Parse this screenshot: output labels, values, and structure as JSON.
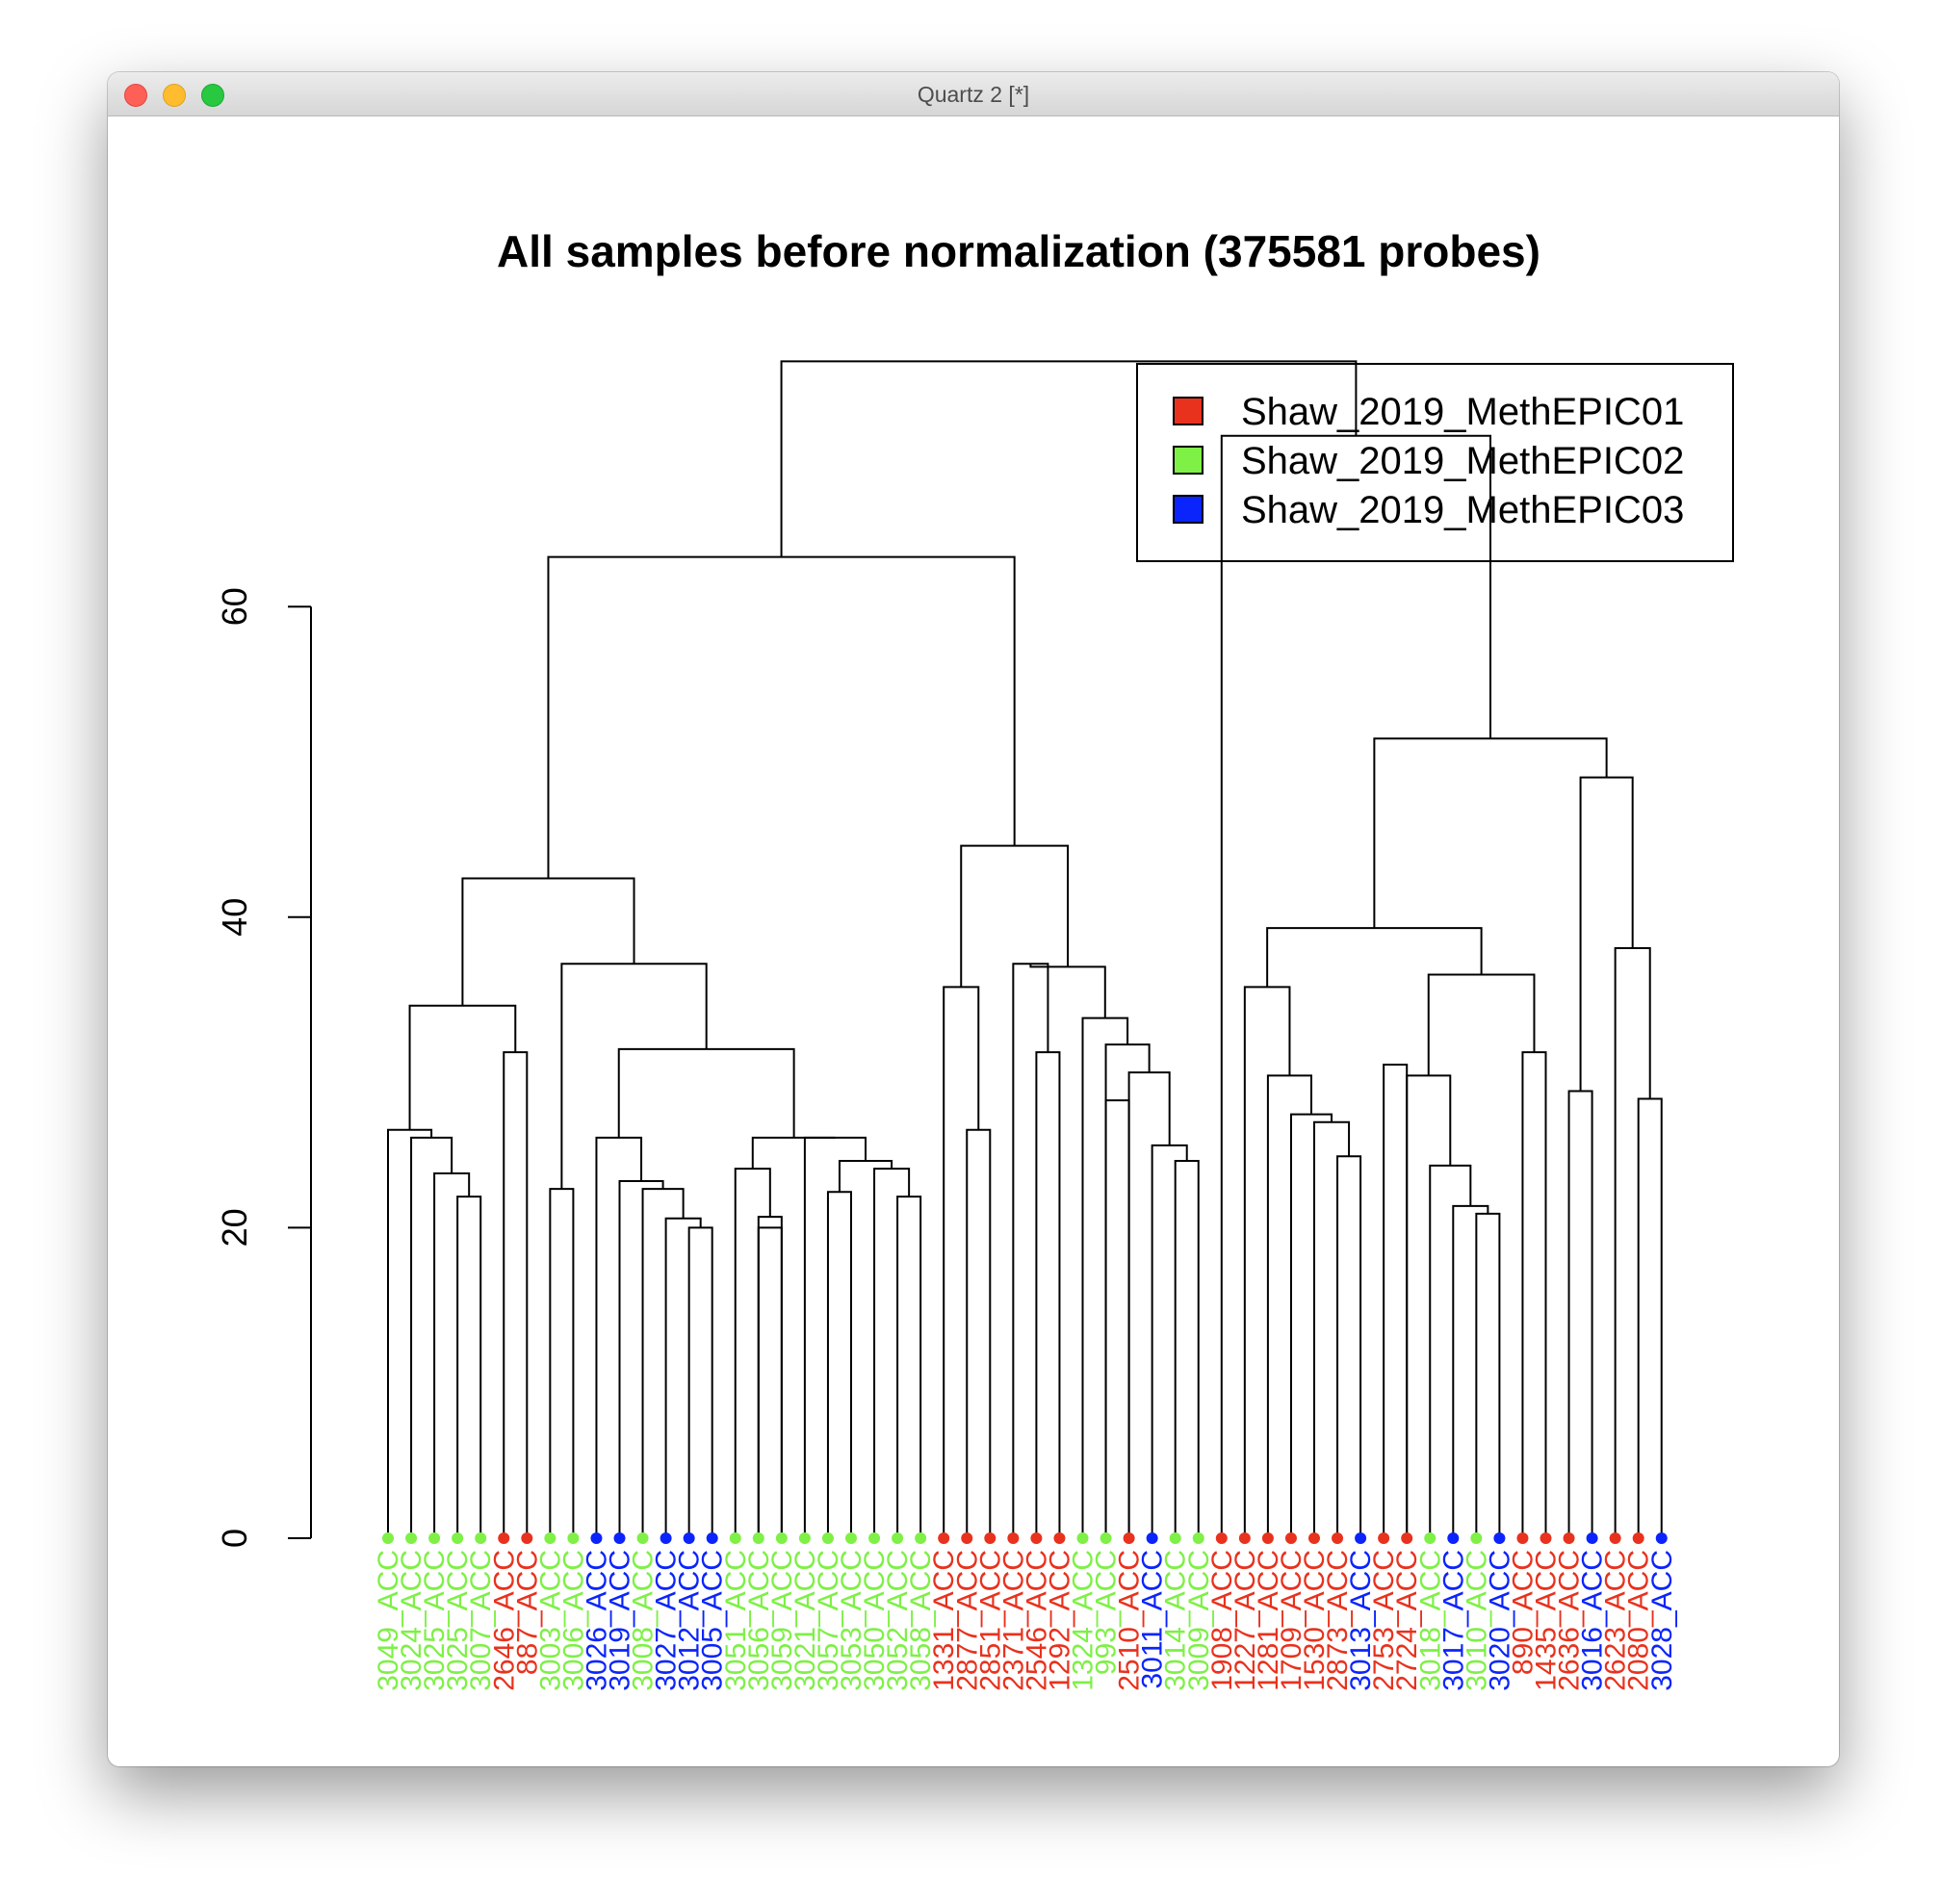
{
  "window": {
    "title": "Quartz 2 [*]"
  },
  "chart_data": {
    "type": "dendrogram",
    "title": "All samples before normalization (375581 probes)",
    "y_axis": {
      "ticks": [
        0,
        20,
        40,
        60
      ],
      "ylim": [
        0,
        75
      ]
    },
    "colors": {
      "Shaw_2019_MethEPIC01": "#e8321e",
      "Shaw_2019_MethEPIC02": "#7ef046",
      "Shaw_2019_MethEPIC03": "#0b24fb"
    },
    "legend": {
      "placement": "top-right",
      "entries": [
        {
          "label": "Shaw_2019_MethEPIC01",
          "color": "#e8321e"
        },
        {
          "label": "Shaw_2019_MethEPIC02",
          "color": "#7ef046"
        },
        {
          "label": "Shaw_2019_MethEPIC03",
          "color": "#0b24fb"
        }
      ]
    },
    "leaves": [
      {
        "label": "3049_ACC",
        "batch": "Shaw_2019_MethEPIC02"
      },
      {
        "label": "3024_ACC",
        "batch": "Shaw_2019_MethEPIC02"
      },
      {
        "label": "3025_ACC",
        "batch": "Shaw_2019_MethEPIC02"
      },
      {
        "label": "3025_ACC",
        "batch": "Shaw_2019_MethEPIC02"
      },
      {
        "label": "3007_ACC",
        "batch": "Shaw_2019_MethEPIC02"
      },
      {
        "label": "2646_ACC",
        "batch": "Shaw_2019_MethEPIC01"
      },
      {
        "label": "887_ACC",
        "batch": "Shaw_2019_MethEPIC01"
      },
      {
        "label": "3003_ACC",
        "batch": "Shaw_2019_MethEPIC02"
      },
      {
        "label": "3006_ACC",
        "batch": "Shaw_2019_MethEPIC02"
      },
      {
        "label": "3026_ACC",
        "batch": "Shaw_2019_MethEPIC03"
      },
      {
        "label": "3019_ACC",
        "batch": "Shaw_2019_MethEPIC03"
      },
      {
        "label": "3008_ACC",
        "batch": "Shaw_2019_MethEPIC02"
      },
      {
        "label": "3027_ACC",
        "batch": "Shaw_2019_MethEPIC03"
      },
      {
        "label": "3012_ACC",
        "batch": "Shaw_2019_MethEPIC03"
      },
      {
        "label": "3005_ACC",
        "batch": "Shaw_2019_MethEPIC03"
      },
      {
        "label": "3051_ACC",
        "batch": "Shaw_2019_MethEPIC02"
      },
      {
        "label": "3056_ACC",
        "batch": "Shaw_2019_MethEPIC02"
      },
      {
        "label": "3059_ACC",
        "batch": "Shaw_2019_MethEPIC02"
      },
      {
        "label": "3021_ACC",
        "batch": "Shaw_2019_MethEPIC02"
      },
      {
        "label": "3057_ACC",
        "batch": "Shaw_2019_MethEPIC02"
      },
      {
        "label": "3053_ACC",
        "batch": "Shaw_2019_MethEPIC02"
      },
      {
        "label": "3050_ACC",
        "batch": "Shaw_2019_MethEPIC02"
      },
      {
        "label": "3052_ACC",
        "batch": "Shaw_2019_MethEPIC02"
      },
      {
        "label": "3058_ACC",
        "batch": "Shaw_2019_MethEPIC02"
      },
      {
        "label": "1331_ACC",
        "batch": "Shaw_2019_MethEPIC01"
      },
      {
        "label": "2877_ACC",
        "batch": "Shaw_2019_MethEPIC01"
      },
      {
        "label": "2851_ACC",
        "batch": "Shaw_2019_MethEPIC01"
      },
      {
        "label": "2371_ACC",
        "batch": "Shaw_2019_MethEPIC01"
      },
      {
        "label": "2546_ACC",
        "batch": "Shaw_2019_MethEPIC01"
      },
      {
        "label": "1292_ACC",
        "batch": "Shaw_2019_MethEPIC01"
      },
      {
        "label": "1324_ACC",
        "batch": "Shaw_2019_MethEPIC02"
      },
      {
        "label": "993_ACC",
        "batch": "Shaw_2019_MethEPIC02"
      },
      {
        "label": "2510_ACC",
        "batch": "Shaw_2019_MethEPIC01"
      },
      {
        "label": "3011_ACC",
        "batch": "Shaw_2019_MethEPIC03"
      },
      {
        "label": "3014_ACC",
        "batch": "Shaw_2019_MethEPIC02"
      },
      {
        "label": "3009_ACC",
        "batch": "Shaw_2019_MethEPIC02"
      },
      {
        "label": "1908_ACC",
        "batch": "Shaw_2019_MethEPIC01"
      },
      {
        "label": "1227_ACC",
        "batch": "Shaw_2019_MethEPIC01"
      },
      {
        "label": "1281_ACC",
        "batch": "Shaw_2019_MethEPIC01"
      },
      {
        "label": "1709_ACC",
        "batch": "Shaw_2019_MethEPIC01"
      },
      {
        "label": "1530_ACC",
        "batch": "Shaw_2019_MethEPIC01"
      },
      {
        "label": "2873_ACC",
        "batch": "Shaw_2019_MethEPIC01"
      },
      {
        "label": "3013_ACC",
        "batch": "Shaw_2019_MethEPIC03"
      },
      {
        "label": "2753_ACC",
        "batch": "Shaw_2019_MethEPIC01"
      },
      {
        "label": "2724_ACC",
        "batch": "Shaw_2019_MethEPIC01"
      },
      {
        "label": "3018_ACC",
        "batch": "Shaw_2019_MethEPIC02"
      },
      {
        "label": "3017_ACC",
        "batch": "Shaw_2019_MethEPIC03"
      },
      {
        "label": "3010_ACC",
        "batch": "Shaw_2019_MethEPIC02"
      },
      {
        "label": "3020_ACC",
        "batch": "Shaw_2019_MethEPIC03"
      },
      {
        "label": "890_ACC",
        "batch": "Shaw_2019_MethEPIC01"
      },
      {
        "label": "1435_ACC",
        "batch": "Shaw_2019_MethEPIC01"
      },
      {
        "label": "2636_ACC",
        "batch": "Shaw_2019_MethEPIC01"
      },
      {
        "label": "3016_ACC",
        "batch": "Shaw_2019_MethEPIC03"
      },
      {
        "label": "2623_ACC",
        "batch": "Shaw_2019_MethEPIC01"
      },
      {
        "label": "2080_ACC",
        "batch": "Shaw_2019_MethEPIC01"
      },
      {
        "label": "3028_ACC",
        "batch": "Shaw_2019_MethEPIC03"
      }
    ],
    "tree": [
      [
        [
          [
            [
              [
                0,
                [
                  1,
                  [
                    2,
                    [
                      3,
                      4
                    ]
                  ]
                ]
              ],
              [
                5,
                6
              ]
            ],
            [
              [
                7,
                8
              ],
              [
                [
                  9,
                  [
                    10,
                    [
                      11,
                      [
                        12,
                        [
                          13,
                          14
                        ]
                      ]
                    ]
                  ]
                ],
                [
                  [
                    15,
                    [
                      16,
                      17
                    ]
                  ],
                  [
                    18,
                    [
                      [
                        19,
                        20
                      ],
                      [
                        21,
                        [
                          22,
                          23
                        ]
                      ]
                    ]
                  ]
                ]
              ]
            ]
          ],
          [
            [
              24,
              25
            ],
            [
              [
                26,
                27
              ],
              [
                [
                  28,
                  29
                ],
                [
                  30,
                  [
                    [
                      31,
                      32
                    ],
                    [
                      [
                        33,
                        34
                      ],
                      35
                    ]
                  ]
                ]
              ]
            ]
          ]
        ],
        [
          36,
          [
            [
              [
                [
                  37,
                  [
                    38,
                    [
                      39,
                      [
                        40,
                        [
                          41,
                          42
                        ]
                      ]
                    ]
                  ]
                ],
                [
                  [
                    [
                      43,
                      44
                    ],
                    [
                      45,
                      [
                        [
                          46,
                          47
                        ],
                        48
                      ]
                    ]
                  ],
                  [
                    49,
                    50
                  ]
                ]
              ],
              [
                [
                  51,
                  52
                ],
                [
                  53,
                  [
                    54,
                    55
                  ]
                ]
              ]
            ]
          ]
        ]
      ]
    ],
    "merge_heights": [
      [
        [
          [
            [
              [
                21.6,
                [
                  null,
                  [
                    23.5,
                    22.0
                  ]
                ]
              ],
              31.3
            ],
            [
              22.5,
              [
                [
                  25.8,
                  [
                    23.0,
                    [
                      22.5,
                      [
                        20.6,
                        20.0
                      ]
                    ]
                  ]
                ],
                [
                  [
                    23.8,
                    20.7
                  ],
                  [
                    22.3,
                    [
                      [
                        24.0,
                        23.8
                      ],
                      22.0
                    ]
                  ]
                ]
              ]
            ]
          ],
          [
            [
              35.5,
              26.3
            ],
            [
              [
                37.0,
                33.5
              ],
              [
                [
                  31.3,
                  28.2
                ],
                [
                  31.8,
                  [
                    30.0,
                    [
                      25.3,
                      24.3
                    ]
                  ]
                ]
              ]
            ]
          ]
        ],
        [
          null,
          [
            [
              [
                35.5,
                [
                  29.8,
                  [
                    27.3,
                    [
                      26.8,
                      24.6
                    ]
                  ]
                ]
              ],
              [
                [
                  [
                    30.5,
                    29.8
                  ],
                  [
                    24.0,
                    [
                      21.4,
                      20.9
                    ]
                  ]
                ],
                31.3
              ]
            ],
            [
              [
                28.8,
                49.0
              ],
              [
                38.0,
                28.3
              ]
            ]
          ]
        ]
      ]
    ]
  }
}
